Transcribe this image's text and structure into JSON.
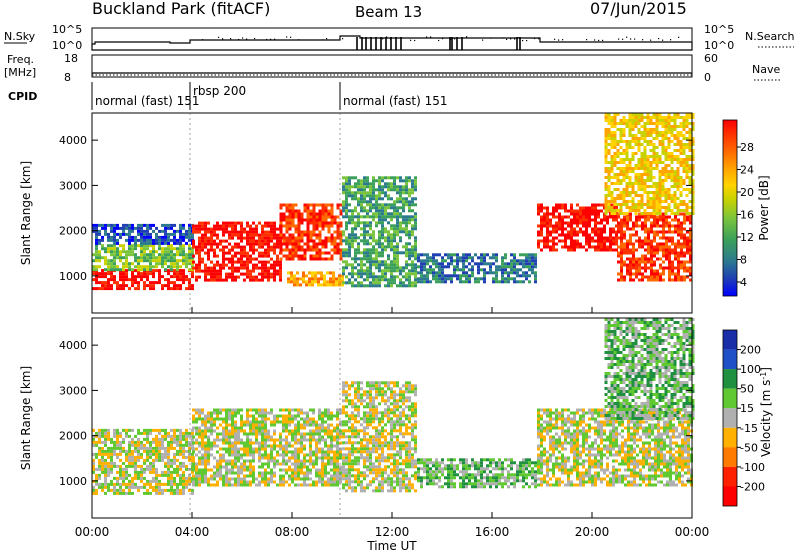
{
  "header": {
    "station": "Buckland Park (fitACF)",
    "beam": "Beam 13",
    "date": "07/Jun/2015"
  },
  "panels": {
    "nsky": {
      "left_label": "N.Sky",
      "left_ticks": [
        "10^5",
        "10^0"
      ],
      "right_ticks": [
        "10^5",
        "10^0"
      ],
      "right_label": "N.Search"
    },
    "freq": {
      "left_label": "Freq.",
      "left_unit": "[MHz]",
      "left_ticks": [
        "18",
        "8"
      ],
      "right_ticks": [
        "60",
        "0"
      ],
      "right_label": "Nave"
    },
    "cpid": {
      "label": "CPID",
      "modes": [
        {
          "label": "normal (fast) 151",
          "start_h": 0,
          "end_h": 4
        },
        {
          "label": "rbsp 200",
          "start_h": 4,
          "end_h": 10
        },
        {
          "label": "normal (fast) 151",
          "start_h": 10,
          "end_h": 24
        }
      ]
    }
  },
  "chart_data": [
    {
      "type": "heatmap",
      "name": "power",
      "ylabel": "Slant Range [km]",
      "ylim": [
        180,
        4600
      ],
      "yticks": [
        1000,
        2000,
        3000,
        4000
      ],
      "xlim": [
        0,
        24
      ],
      "colorbar": {
        "label": "Power [dB]",
        "ticks": [
          "28",
          "24",
          "20",
          "16",
          "12",
          "8",
          "4"
        ],
        "colors": [
          "#0000ff",
          "#1f3fb3",
          "#2c7a8e",
          "#3aa05a",
          "#7ac43c",
          "#c8d200",
          "#ffd300",
          "#ffa500",
          "#ff6a00",
          "#ff3000",
          "#ff0000"
        ]
      },
      "regions": [
        {
          "t0": 0.0,
          "t1": 4.0,
          "r0": 750,
          "r1": 1150,
          "level": 10
        },
        {
          "t0": 0.0,
          "t1": 4.0,
          "r0": 1150,
          "r1": 1700,
          "level": 4
        },
        {
          "t0": 0.0,
          "t1": 4.0,
          "r0": 1700,
          "r1": 2150,
          "level": 1
        },
        {
          "t0": 4.0,
          "t1": 7.5,
          "r0": 900,
          "r1": 2200,
          "level": 10
        },
        {
          "t0": 7.5,
          "t1": 10.0,
          "r0": 1400,
          "r1": 2600,
          "level": 9
        },
        {
          "t0": 7.8,
          "t1": 10.0,
          "r0": 800,
          "r1": 1100,
          "level": 7
        },
        {
          "t0": 10.0,
          "t1": 13.0,
          "r0": 800,
          "r1": 3200,
          "level": 3
        },
        {
          "t0": 13.0,
          "t1": 17.8,
          "r0": 900,
          "r1": 1500,
          "level": 2
        },
        {
          "t0": 17.8,
          "t1": 21.0,
          "r0": 1600,
          "r1": 2600,
          "level": 10
        },
        {
          "t0": 21.0,
          "t1": 24.0,
          "r0": 900,
          "r1": 2400,
          "level": 9
        },
        {
          "t0": 20.5,
          "t1": 24.0,
          "r0": 2400,
          "r1": 4600,
          "level": 6
        }
      ]
    },
    {
      "type": "heatmap",
      "name": "velocity",
      "ylabel": "Slant Range [km]",
      "ylim": [
        180,
        4600
      ],
      "yticks": [
        1000,
        2000,
        3000,
        4000
      ],
      "xlim": [
        0,
        24
      ],
      "xticks": [
        "00:00",
        "04:00",
        "08:00",
        "12:00",
        "16:00",
        "20:00",
        "00:00"
      ],
      "xlabel": "Time UT",
      "colorbar": {
        "label": "Velocity [m s^-1]",
        "ticks": [
          "200",
          "100",
          "50",
          "15",
          "-15",
          "-50",
          "-100",
          "-200"
        ],
        "colors": [
          "#1a2ea8",
          "#2050c8",
          "#1f9040",
          "#60c830",
          "#b0b0b0",
          "#ffb000",
          "#ff7a00",
          "#ff2000",
          "#ff0000"
        ]
      },
      "regions": [
        {
          "t0": 0.0,
          "t1": 4.0,
          "r0": 750,
          "r1": 2150,
          "level": 4
        },
        {
          "t0": 4.0,
          "t1": 10.0,
          "r0": 900,
          "r1": 2600,
          "level": 4
        },
        {
          "t0": 10.0,
          "t1": 13.0,
          "r0": 800,
          "r1": 3200,
          "level": 4
        },
        {
          "t0": 13.0,
          "t1": 17.8,
          "r0": 900,
          "r1": 1500,
          "level": 3
        },
        {
          "t0": 17.8,
          "t1": 24.0,
          "r0": 900,
          "r1": 2600,
          "level": 4
        },
        {
          "t0": 20.5,
          "t1": 24.0,
          "r0": 2400,
          "r1": 4600,
          "level": 3
        }
      ]
    }
  ]
}
